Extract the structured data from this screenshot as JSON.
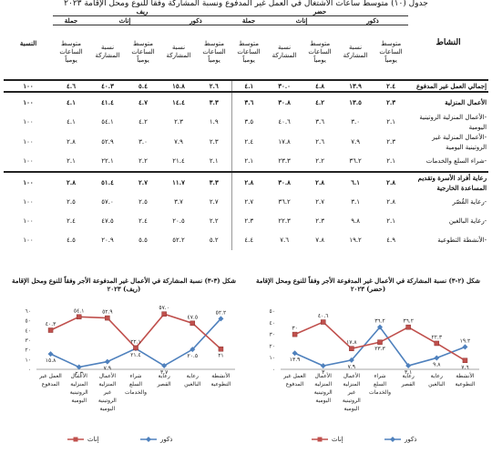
{
  "page_title": "جدول (١٠) متوسط ساعات الاشتغال في العمل غير المدفوع ونسبة المشاركة وفقاً للنوع ومحل الإقامة ٢٠٢٣",
  "table": {
    "activity_header": "النشاط",
    "ratio_header": "النسبة",
    "region_rural": "ريف",
    "region_urban": "حضر",
    "group_total": "جملة",
    "group_female": "إناث",
    "group_male": "ذكور",
    "col_avg_hours": "متوسط الساعات يومياً",
    "col_participation": "نسبة المشاركة",
    "rows": [
      {
        "label": "إجمالي العمل غير المدفوع",
        "cells": [
          "١٠٠",
          "٤.٦",
          "٤٠.٣",
          "٥.٤",
          "١٥.٨",
          "٢.٦",
          "٤.١",
          "٣٠.٠",
          "٤.٨",
          "١٣.٩",
          "٢.٤"
        ],
        "kind": "total"
      },
      {
        "label": "الأعمال المنزلية",
        "cells": [
          "١٠٠",
          "٤.١",
          "٤١.٤",
          "٤.٧",
          "١٤.٤",
          "٣.٣",
          "٣.٦",
          "٣٠.٨",
          "٤.٢",
          "١٣.٥",
          "٢.٣"
        ],
        "kind": "section"
      },
      {
        "label": "-الأعمال المنزلية الروتينية اليومية",
        "cells": [
          "١٠٠",
          "٤.١",
          "٥٤.١",
          "٤.٢",
          "٢.٣",
          "١.٩",
          "٣.٥",
          "٤٠.٦",
          "٣.٦",
          "٣.٠",
          "٢.١"
        ],
        "kind": "sub"
      },
      {
        "label": "-الأعمال المنزلية غير الروتينية اليومية",
        "cells": [
          "١٠٠",
          "٢.٨",
          "٥٢.٩",
          "٣.٠",
          "٧.٩",
          "٢.٣",
          "٢.٤",
          "١٧.٨",
          "٢.٦",
          "٧.٩",
          "٢.٣"
        ],
        "kind": "sub"
      },
      {
        "label": "-شراء السلع والخدمات",
        "cells": [
          "١٠٠",
          "٢.١",
          "٢٢.١",
          "٢.٢",
          "٢١.٤",
          "٢.١",
          "٢.١",
          "٢٣.٣",
          "٢.٢",
          "٣٦.٢",
          "٢.١"
        ],
        "kind": "sub"
      },
      {
        "label": "رعاية أفراد الأسرة وتقديم المساعدة الخارجية",
        "cells": [
          "١٠٠",
          "٢.٨",
          "٥١.٤",
          "٢.٧",
          "١١.٧",
          "٣.٣",
          "٢.٨",
          "٣٠.٨",
          "٢.٨",
          "٦.١",
          "٢.٨"
        ],
        "kind": "section"
      },
      {
        "label": "-رعاية القُصّر",
        "cells": [
          "١٠٠",
          "٢.٥",
          "٥٧.٠",
          "٢.٥",
          "٣.٧",
          "٢.٧",
          "٢.٧",
          "٣٦.٢",
          "٢.٧",
          "٣.١",
          "٢.٨"
        ],
        "kind": "sub"
      },
      {
        "label": "-رعاية البالغين",
        "cells": [
          "١٠٠",
          "٢.٤",
          "٤٧.٥",
          "٢.٤",
          "٢٠.٥",
          "٢.٢",
          "٢.٣",
          "٢٢.٣",
          "٢.٣",
          "٩.٨",
          "٢.١"
        ],
        "kind": "sub"
      },
      {
        "label": "-الأنشطة التطوعية",
        "cells": [
          "١٠٠",
          "٤.٥",
          "٢٠.٩",
          "٥.٥",
          "٥٢.٢",
          "٥.٢",
          "٤.٤",
          "٧.٦",
          "٧.٨",
          "١٩.٢",
          "٤.٩"
        ],
        "kind": "sub"
      }
    ]
  },
  "chart_data": [
    {
      "type": "line",
      "title": "شكل (٣-٣) نسبة المشاركة في الأعمال غير المدفوعة الأجر وفقاً للنوع ومحل الإقامة (ريف) ٢٠٢٣",
      "categories": [
        "العمل غير المدفوع",
        "الأعمال المنزلية الروتينية اليومية",
        "الأعمال المنزلية غير الروتينية اليومية",
        "شراء السلع والخدمات",
        "رعاية القصر",
        "رعاية البالغين",
        "الأنشطة التطوعية"
      ],
      "ytick_labels": [
        "٠",
        "١٠",
        "٢٠",
        "٣٠",
        "٤٠",
        "٥٠",
        "٦٠"
      ],
      "ylim": [
        0,
        60
      ],
      "series": [
        {
          "name": "ذكور",
          "values": [
            15.8,
            2.3,
            7.9,
            21.4,
            3.7,
            20.5,
            52.2
          ],
          "labels": [
            "١٥.٨",
            "٢.٣",
            "٧.٩",
            "٢١.٤",
            "٣.٧",
            "٢٠.٥",
            "٥٢.٢"
          ],
          "color": "#4f81bd",
          "marker": "diamond"
        },
        {
          "name": "إناث",
          "values": [
            40.3,
            54.1,
            52.9,
            22.1,
            57.0,
            47.5,
            20.9
          ],
          "labels": [
            "٤٠.٣",
            "٥٤.١",
            "٥٢.٩",
            "٢٢.١",
            "٥٧.٠",
            "٤٧.٥",
            "٢١"
          ],
          "color": "#c0504d",
          "marker": "square"
        }
      ]
    },
    {
      "type": "line",
      "title": "شكل (٢-٣) نسبة المشاركة في الأعمال غير المدفوعة الأجر وفقاً للنوع ومحل الإقامة (حضر) ٢٠٢٣",
      "categories": [
        "العمل غير المدفوع",
        "الأعمال المنزلية الروتينية اليومية",
        "الأعمال المنزلية غير الروتينية اليومية",
        "شراء السلع والخدمات",
        "رعاية القصر",
        "رعاية البالغين",
        "الأنشطة التطوعية"
      ],
      "ytick_labels": [
        "٠",
        "١٠",
        "٢٠",
        "٣٠",
        "٤٠",
        "٥٠"
      ],
      "ylim": [
        0,
        50
      ],
      "series": [
        {
          "name": "ذكور",
          "values": [
            13.9,
            3.0,
            7.9,
            36.2,
            3.1,
            9.8,
            19.2
          ],
          "labels": [
            "١٣.٩",
            "٣",
            "٧.٩",
            "٣٦.٢",
            "٣.١",
            "٩.٨",
            "١٩.٢"
          ],
          "color": "#4f81bd",
          "marker": "diamond"
        },
        {
          "name": "إناث",
          "values": [
            30.0,
            40.6,
            17.8,
            23.3,
            36.2,
            22.3,
            7.6
          ],
          "labels": [
            "٣٠",
            "٤٠.٦",
            "١٧.٨",
            "٢٣.٣",
            "٣٦.٢",
            "٢٢.٣",
            "٧.٦"
          ],
          "color": "#c0504d",
          "marker": "square"
        }
      ]
    }
  ]
}
